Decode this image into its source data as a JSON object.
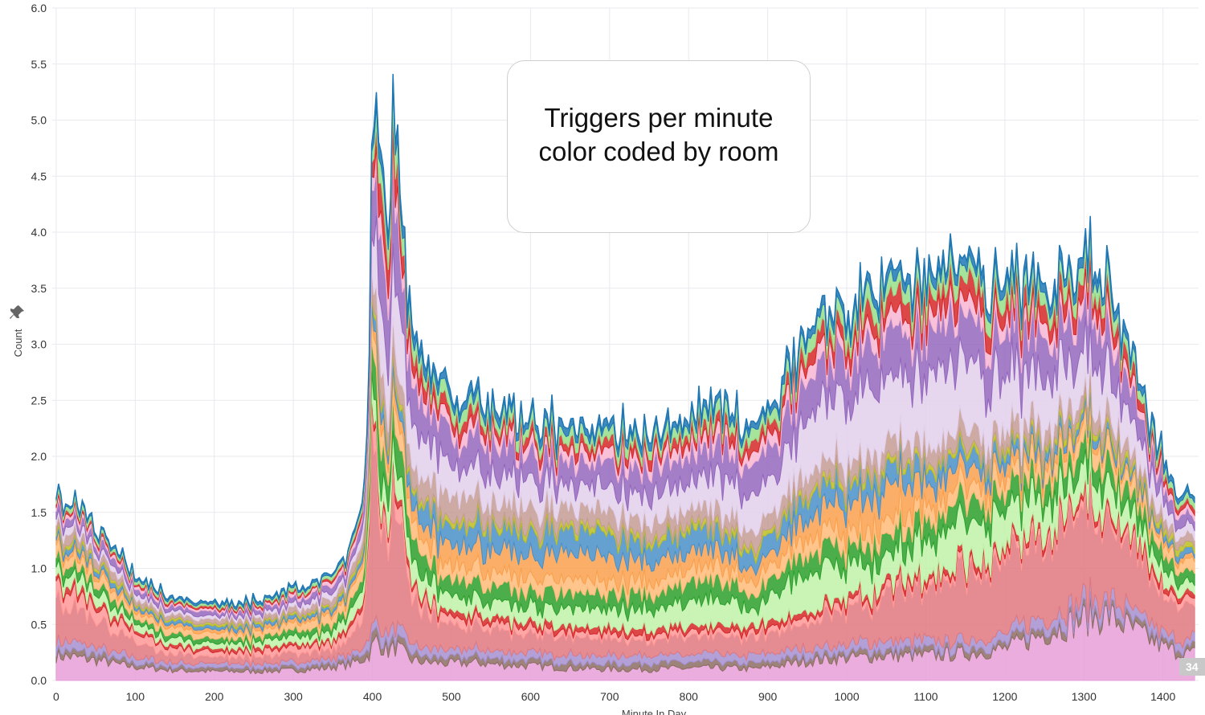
{
  "chart_data": {
    "type": "area",
    "stacked": true,
    "title": "",
    "xlabel": "Minute In Day",
    "ylabel": "Count",
    "xlim": [
      -5,
      1445
    ],
    "ylim": [
      0,
      6.0
    ],
    "x_ticks": [
      "0",
      "100",
      "200",
      "300",
      "400",
      "500",
      "600",
      "700",
      "800",
      "900",
      "1000",
      "1100",
      "1200",
      "1300",
      "1400"
    ],
    "y_ticks": [
      "0.0",
      "0.5",
      "1.0",
      "1.5",
      "2.0",
      "2.5",
      "3.0",
      "3.5",
      "4.0",
      "4.5",
      "5.0",
      "5.5",
      "6.0"
    ],
    "grid": true,
    "legend": "none",
    "annotation": [
      "Triggers per minute",
      "color coded by room"
    ],
    "badge": "34",
    "x": [
      0,
      20,
      40,
      60,
      80,
      100,
      150,
      200,
      250,
      300,
      340,
      370,
      385,
      395,
      400,
      405,
      410,
      420,
      430,
      440,
      450,
      470,
      500,
      530,
      560,
      600,
      650,
      700,
      750,
      800,
      830,
      860,
      880,
      900,
      930,
      960,
      1000,
      1050,
      1100,
      1150,
      1200,
      1250,
      1300,
      1330,
      1350,
      1380,
      1400,
      1420,
      1440
    ],
    "series": [
      {
        "color": "#e69fd8",
        "values": [
          0.22,
          0.21,
          0.19,
          0.17,
          0.14,
          0.12,
          0.09,
          0.08,
          0.08,
          0.09,
          0.11,
          0.14,
          0.18,
          0.22,
          0.3,
          0.36,
          0.32,
          0.26,
          0.3,
          0.24,
          0.18,
          0.16,
          0.15,
          0.16,
          0.14,
          0.13,
          0.11,
          0.1,
          0.1,
          0.11,
          0.11,
          0.11,
          0.1,
          0.12,
          0.15,
          0.18,
          0.2,
          0.22,
          0.22,
          0.24,
          0.28,
          0.42,
          0.55,
          0.58,
          0.5,
          0.38,
          0.3,
          0.25,
          0.24
        ]
      },
      {
        "color": "#8c6d62",
        "values": [
          0.05,
          0.05,
          0.05,
          0.05,
          0.04,
          0.04,
          0.03,
          0.03,
          0.03,
          0.03,
          0.04,
          0.04,
          0.05,
          0.06,
          0.08,
          0.08,
          0.07,
          0.07,
          0.08,
          0.07,
          0.06,
          0.05,
          0.05,
          0.05,
          0.05,
          0.05,
          0.05,
          0.05,
          0.05,
          0.05,
          0.05,
          0.05,
          0.05,
          0.05,
          0.05,
          0.05,
          0.05,
          0.05,
          0.05,
          0.05,
          0.05,
          0.06,
          0.06,
          0.06,
          0.06,
          0.05,
          0.05,
          0.05,
          0.05
        ]
      },
      {
        "color": "#a48fd0",
        "values": [
          0.08,
          0.08,
          0.07,
          0.06,
          0.05,
          0.05,
          0.04,
          0.04,
          0.04,
          0.04,
          0.04,
          0.05,
          0.06,
          0.08,
          0.1,
          0.1,
          0.09,
          0.08,
          0.1,
          0.09,
          0.08,
          0.07,
          0.07,
          0.07,
          0.07,
          0.07,
          0.07,
          0.07,
          0.07,
          0.07,
          0.07,
          0.07,
          0.07,
          0.07,
          0.07,
          0.07,
          0.08,
          0.08,
          0.08,
          0.08,
          0.08,
          0.09,
          0.1,
          0.1,
          0.1,
          0.09,
          0.08,
          0.08,
          0.08
        ]
      },
      {
        "color": "#e0787f",
        "values": [
          0.35,
          0.32,
          0.28,
          0.22,
          0.17,
          0.12,
          0.08,
          0.06,
          0.06,
          0.07,
          0.08,
          0.12,
          0.25,
          0.6,
          1.8,
          1.4,
          1.0,
          0.7,
          1.2,
          0.6,
          0.4,
          0.3,
          0.2,
          0.2,
          0.18,
          0.16,
          0.15,
          0.14,
          0.14,
          0.15,
          0.15,
          0.15,
          0.14,
          0.18,
          0.2,
          0.25,
          0.3,
          0.4,
          0.5,
          0.6,
          0.6,
          0.7,
          0.75,
          0.7,
          0.6,
          0.45,
          0.35,
          0.3,
          0.25
        ]
      },
      {
        "color": "#ff9896",
        "values": [
          0.15,
          0.14,
          0.13,
          0.11,
          0.09,
          0.08,
          0.06,
          0.05,
          0.05,
          0.06,
          0.07,
          0.08,
          0.1,
          0.12,
          0.2,
          0.18,
          0.16,
          0.15,
          0.16,
          0.12,
          0.1,
          0.08,
          0.07,
          0.07,
          0.06,
          0.06,
          0.05,
          0.05,
          0.05,
          0.05,
          0.05,
          0.05,
          0.05,
          0.05,
          0.06,
          0.06,
          0.06,
          0.06,
          0.05,
          0.05,
          0.06,
          0.06,
          0.06,
          0.06,
          0.06,
          0.06,
          0.06,
          0.06,
          0.06
        ]
      },
      {
        "color": "#d62728",
        "values": [
          0.05,
          0.05,
          0.05,
          0.04,
          0.04,
          0.03,
          0.03,
          0.03,
          0.03,
          0.03,
          0.03,
          0.04,
          0.05,
          0.06,
          0.08,
          0.08,
          0.07,
          0.06,
          0.07,
          0.06,
          0.05,
          0.05,
          0.05,
          0.05,
          0.05,
          0.05,
          0.05,
          0.05,
          0.05,
          0.05,
          0.05,
          0.05,
          0.05,
          0.05,
          0.05,
          0.05,
          0.05,
          0.05,
          0.05,
          0.05,
          0.05,
          0.05,
          0.05,
          0.05,
          0.05,
          0.05,
          0.05,
          0.05,
          0.05
        ]
      },
      {
        "color": "#bff2a8",
        "values": [
          0.1,
          0.1,
          0.09,
          0.08,
          0.07,
          0.06,
          0.05,
          0.05,
          0.05,
          0.06,
          0.07,
          0.09,
          0.12,
          0.15,
          0.2,
          0.22,
          0.22,
          0.22,
          0.22,
          0.2,
          0.18,
          0.16,
          0.15,
          0.15,
          0.14,
          0.14,
          0.15,
          0.16,
          0.18,
          0.22,
          0.22,
          0.2,
          0.15,
          0.2,
          0.3,
          0.35,
          0.3,
          0.25,
          0.3,
          0.35,
          0.3,
          0.28,
          0.25,
          0.25,
          0.2,
          0.15,
          0.12,
          0.1,
          0.1
        ]
      },
      {
        "color": "#2ca02c",
        "values": [
          0.08,
          0.08,
          0.07,
          0.07,
          0.06,
          0.05,
          0.04,
          0.04,
          0.04,
          0.05,
          0.06,
          0.07,
          0.1,
          0.12,
          0.3,
          0.35,
          0.3,
          0.2,
          0.3,
          0.25,
          0.2,
          0.18,
          0.15,
          0.15,
          0.14,
          0.14,
          0.14,
          0.14,
          0.15,
          0.16,
          0.16,
          0.16,
          0.14,
          0.16,
          0.18,
          0.18,
          0.18,
          0.18,
          0.18,
          0.18,
          0.18,
          0.18,
          0.18,
          0.18,
          0.16,
          0.14,
          0.12,
          0.1,
          0.1
        ]
      },
      {
        "color": "#ffbb78",
        "values": [
          0.1,
          0.1,
          0.09,
          0.08,
          0.07,
          0.06,
          0.05,
          0.05,
          0.05,
          0.06,
          0.07,
          0.08,
          0.1,
          0.12,
          0.2,
          0.2,
          0.18,
          0.16,
          0.18,
          0.16,
          0.15,
          0.14,
          0.13,
          0.13,
          0.12,
          0.12,
          0.12,
          0.12,
          0.12,
          0.12,
          0.12,
          0.12,
          0.12,
          0.12,
          0.13,
          0.13,
          0.13,
          0.13,
          0.13,
          0.13,
          0.13,
          0.13,
          0.13,
          0.13,
          0.12,
          0.11,
          0.1,
          0.09,
          0.09
        ]
      },
      {
        "color": "#f9a04d",
        "values": [
          0.05,
          0.05,
          0.05,
          0.04,
          0.04,
          0.03,
          0.03,
          0.03,
          0.03,
          0.03,
          0.03,
          0.04,
          0.05,
          0.06,
          0.1,
          0.1,
          0.1,
          0.08,
          0.1,
          0.1,
          0.12,
          0.15,
          0.18,
          0.2,
          0.2,
          0.2,
          0.22,
          0.22,
          0.18,
          0.15,
          0.15,
          0.12,
          0.1,
          0.12,
          0.15,
          0.2,
          0.25,
          0.3,
          0.22,
          0.15,
          0.1,
          0.08,
          0.06,
          0.05,
          0.05,
          0.04,
          0.04,
          0.04,
          0.04
        ]
      },
      {
        "color": "#4a90c8",
        "values": [
          0.05,
          0.05,
          0.05,
          0.04,
          0.04,
          0.03,
          0.03,
          0.03,
          0.03,
          0.03,
          0.03,
          0.04,
          0.05,
          0.06,
          0.1,
          0.1,
          0.1,
          0.1,
          0.1,
          0.12,
          0.14,
          0.18,
          0.2,
          0.2,
          0.2,
          0.2,
          0.2,
          0.2,
          0.18,
          0.18,
          0.18,
          0.16,
          0.14,
          0.16,
          0.18,
          0.2,
          0.18,
          0.16,
          0.15,
          0.12,
          0.1,
          0.08,
          0.06,
          0.06,
          0.05,
          0.05,
          0.05,
          0.05,
          0.05
        ]
      },
      {
        "color": "#bcbd22",
        "values": [
          0.03,
          0.03,
          0.03,
          0.03,
          0.03,
          0.02,
          0.02,
          0.02,
          0.02,
          0.02,
          0.02,
          0.03,
          0.03,
          0.04,
          0.05,
          0.05,
          0.05,
          0.05,
          0.05,
          0.05,
          0.05,
          0.05,
          0.05,
          0.05,
          0.05,
          0.05,
          0.05,
          0.05,
          0.05,
          0.05,
          0.05,
          0.05,
          0.05,
          0.05,
          0.05,
          0.05,
          0.05,
          0.05,
          0.05,
          0.05,
          0.05,
          0.05,
          0.05,
          0.05,
          0.05,
          0.05,
          0.05,
          0.05,
          0.05
        ]
      },
      {
        "color": "#c49c94",
        "values": [
          0.08,
          0.08,
          0.07,
          0.07,
          0.06,
          0.05,
          0.04,
          0.04,
          0.04,
          0.05,
          0.06,
          0.07,
          0.09,
          0.12,
          0.2,
          0.22,
          0.22,
          0.2,
          0.22,
          0.22,
          0.2,
          0.2,
          0.2,
          0.2,
          0.18,
          0.18,
          0.16,
          0.15,
          0.15,
          0.15,
          0.15,
          0.15,
          0.14,
          0.15,
          0.16,
          0.16,
          0.16,
          0.16,
          0.16,
          0.16,
          0.15,
          0.15,
          0.14,
          0.14,
          0.12,
          0.1,
          0.09,
          0.08,
          0.08
        ]
      },
      {
        "color": "#e2d0ec",
        "values": [
          0.06,
          0.06,
          0.05,
          0.05,
          0.04,
          0.04,
          0.03,
          0.03,
          0.03,
          0.04,
          0.05,
          0.06,
          0.08,
          0.1,
          0.4,
          0.5,
          0.5,
          0.45,
          0.6,
          0.45,
          0.35,
          0.3,
          0.28,
          0.26,
          0.24,
          0.22,
          0.2,
          0.2,
          0.22,
          0.25,
          0.28,
          0.3,
          0.28,
          0.32,
          0.4,
          0.5,
          0.55,
          0.6,
          0.62,
          0.6,
          0.5,
          0.45,
          0.4,
          0.38,
          0.32,
          0.22,
          0.15,
          0.1,
          0.08
        ]
      },
      {
        "color": "#9467bd",
        "values": [
          0.08,
          0.08,
          0.07,
          0.07,
          0.06,
          0.05,
          0.04,
          0.04,
          0.04,
          0.05,
          0.06,
          0.07,
          0.09,
          0.12,
          0.5,
          0.6,
          0.6,
          0.55,
          0.65,
          0.45,
          0.35,
          0.3,
          0.28,
          0.26,
          0.24,
          0.24,
          0.22,
          0.22,
          0.24,
          0.26,
          0.28,
          0.28,
          0.26,
          0.28,
          0.32,
          0.35,
          0.38,
          0.4,
          0.42,
          0.4,
          0.38,
          0.36,
          0.35,
          0.34,
          0.28,
          0.2,
          0.14,
          0.1,
          0.08
        ]
      },
      {
        "color": "#f7b6d2",
        "values": [
          0.04,
          0.04,
          0.04,
          0.03,
          0.03,
          0.03,
          0.02,
          0.02,
          0.02,
          0.03,
          0.03,
          0.04,
          0.05,
          0.06,
          0.15,
          0.18,
          0.18,
          0.16,
          0.18,
          0.14,
          0.12,
          0.1,
          0.1,
          0.1,
          0.09,
          0.09,
          0.09,
          0.09,
          0.09,
          0.1,
          0.1,
          0.1,
          0.1,
          0.1,
          0.11,
          0.12,
          0.12,
          0.13,
          0.13,
          0.13,
          0.12,
          0.12,
          0.12,
          0.12,
          0.1,
          0.08,
          0.06,
          0.05,
          0.05
        ]
      },
      {
        "color": "#d62728",
        "values": [
          0.03,
          0.03,
          0.03,
          0.03,
          0.03,
          0.02,
          0.02,
          0.02,
          0.02,
          0.02,
          0.02,
          0.03,
          0.04,
          0.05,
          0.2,
          0.25,
          0.25,
          0.22,
          0.25,
          0.18,
          0.14,
          0.12,
          0.1,
          0.1,
          0.09,
          0.09,
          0.08,
          0.08,
          0.08,
          0.09,
          0.1,
          0.1,
          0.1,
          0.1,
          0.12,
          0.14,
          0.15,
          0.16,
          0.17,
          0.17,
          0.16,
          0.15,
          0.14,
          0.14,
          0.12,
          0.09,
          0.07,
          0.05,
          0.04
        ]
      },
      {
        "color": "#98df8a",
        "values": [
          0.04,
          0.04,
          0.04,
          0.03,
          0.03,
          0.03,
          0.02,
          0.02,
          0.02,
          0.03,
          0.03,
          0.04,
          0.05,
          0.06,
          0.15,
          0.18,
          0.18,
          0.16,
          0.18,
          0.14,
          0.12,
          0.1,
          0.1,
          0.1,
          0.09,
          0.09,
          0.08,
          0.08,
          0.08,
          0.09,
          0.1,
          0.1,
          0.1,
          0.1,
          0.11,
          0.12,
          0.12,
          0.13,
          0.13,
          0.13,
          0.12,
          0.12,
          0.12,
          0.12,
          0.1,
          0.08,
          0.06,
          0.05,
          0.05
        ]
      },
      {
        "color": "#1f77b4",
        "values": [
          0.02,
          0.02,
          0.02,
          0.02,
          0.02,
          0.02,
          0.02,
          0.02,
          0.02,
          0.02,
          0.02,
          0.02,
          0.03,
          0.04,
          0.1,
          0.12,
          0.12,
          0.1,
          0.12,
          0.1,
          0.08,
          0.08,
          0.07,
          0.07,
          0.06,
          0.06,
          0.06,
          0.06,
          0.06,
          0.06,
          0.06,
          0.06,
          0.06,
          0.06,
          0.07,
          0.07,
          0.08,
          0.08,
          0.08,
          0.08,
          0.08,
          0.08,
          0.08,
          0.08,
          0.07,
          0.06,
          0.05,
          0.04,
          0.04
        ]
      }
    ]
  },
  "colors": {
    "background": "#ffffff",
    "grid": "#e9e9ee",
    "tick_text": "#333333",
    "top_line": "#1f77b4",
    "badge": "#c8c8c8"
  },
  "icons": {
    "pin": "pin-icon"
  }
}
